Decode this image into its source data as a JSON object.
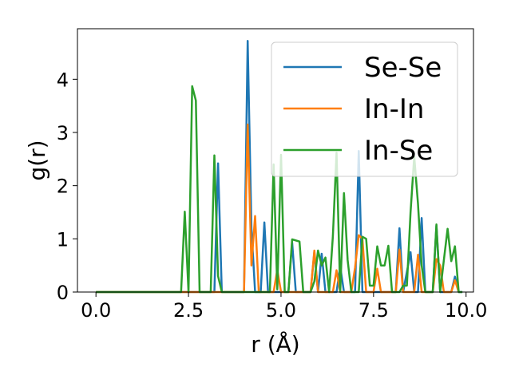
{
  "chart_data": {
    "type": "line",
    "xlabel": "r (Å)",
    "ylabel": "g(r)",
    "xlim": [
      -0.5,
      10.2
    ],
    "ylim": [
      0,
      4.95
    ],
    "xticks": [
      0.0,
      2.5,
      5.0,
      7.5,
      10.0
    ],
    "xtick_labels": [
      "0.0",
      "2.5",
      "5.0",
      "7.5",
      "10.0"
    ],
    "yticks": [
      0,
      1,
      2,
      3,
      4
    ],
    "ytick_labels": [
      "0",
      "1",
      "2",
      "3",
      "4"
    ],
    "grid": false,
    "legend_position": "top-right",
    "series": [
      {
        "name": "Se-Se",
        "color": "#1f77b4",
        "x": [
          0.0,
          3.2,
          3.3,
          3.4,
          3.5,
          4.0,
          4.1,
          4.2,
          4.3,
          4.35,
          4.45,
          4.55,
          4.65,
          4.8,
          5.0,
          5.2,
          5.3,
          5.4,
          5.6,
          5.8,
          5.9,
          6.0,
          6.1,
          6.2,
          6.4,
          6.5,
          6.6,
          6.7,
          6.9,
          7.0,
          7.1,
          7.2,
          7.4,
          7.5,
          7.6,
          7.8,
          8.0,
          8.1,
          8.2,
          8.3,
          8.5,
          8.6,
          8.7,
          8.8,
          8.9,
          9.0,
          9.1,
          9.2,
          9.3,
          9.5,
          9.6,
          9.7,
          9.8,
          9.9
        ],
        "y": [
          0,
          0,
          2.42,
          0,
          0,
          0,
          4.72,
          1.2,
          0,
          0,
          0,
          1.31,
          0,
          0,
          0,
          0,
          0.93,
          0,
          0,
          0,
          0.75,
          0,
          0.72,
          0,
          0,
          0,
          0.48,
          0,
          0,
          0,
          2.65,
          0,
          0,
          0,
          0,
          0,
          0,
          0,
          1.2,
          0,
          0.75,
          0,
          0,
          1.39,
          0,
          0,
          0,
          1.25,
          0,
          0,
          0,
          0.29,
          0,
          0
        ]
      },
      {
        "name": "In-In",
        "color": "#ff7f0e",
        "x": [
          0.0,
          3.9,
          4.0,
          4.1,
          4.2,
          4.3,
          4.4,
          4.5,
          4.7,
          4.8,
          4.9,
          5.0,
          5.8,
          5.9,
          6.0,
          6.1,
          6.3,
          6.4,
          6.5,
          6.6,
          6.8,
          6.9,
          7.0,
          7.1,
          7.2,
          7.3,
          7.5,
          7.6,
          7.7,
          7.8,
          8.1,
          8.2,
          8.3,
          8.6,
          8.7,
          8.8,
          9.0,
          9.1,
          9.2,
          9.3,
          9.4,
          9.6,
          9.7,
          9.8
        ],
        "y": [
          0,
          0,
          0,
          3.15,
          0.5,
          1.43,
          0,
          0,
          0,
          0,
          0.42,
          0,
          0,
          0.78,
          0,
          0,
          0,
          0,
          0.41,
          0,
          0,
          0,
          0.46,
          1.07,
          1.0,
          0,
          0,
          0.44,
          0,
          0,
          0,
          0.8,
          0,
          0,
          0.7,
          0,
          0,
          0,
          0.62,
          0.5,
          0,
          0,
          0.22,
          0
        ]
      },
      {
        "name": "In-Se",
        "color": "#2ca02c",
        "x": [
          0.0,
          2.3,
          2.4,
          2.5,
          2.6,
          2.7,
          2.8,
          3.1,
          3.2,
          3.3,
          3.4,
          3.8,
          3.9,
          4.4,
          4.5,
          4.7,
          4.8,
          4.9,
          5.0,
          5.1,
          5.2,
          5.3,
          5.5,
          5.6,
          5.7,
          5.8,
          5.9,
          6.0,
          6.1,
          6.2,
          6.3,
          6.4,
          6.5,
          6.6,
          6.7,
          6.8,
          6.9,
          7.0,
          7.1,
          7.2,
          7.3,
          7.4,
          7.5,
          7.6,
          7.7,
          7.8,
          7.9,
          8.0,
          8.1,
          8.2,
          8.3,
          8.4,
          8.5,
          8.6,
          8.7,
          8.8,
          8.9,
          9.0,
          9.1,
          9.2,
          9.3,
          9.4,
          9.5,
          9.6,
          9.7,
          9.8,
          9.9
        ],
        "y": [
          0,
          0,
          1.51,
          0,
          3.87,
          3.6,
          0,
          0,
          2.57,
          0.3,
          0,
          0,
          0,
          0,
          0,
          0,
          2.4,
          0.05,
          2.58,
          0,
          0,
          0.99,
          0.95,
          0,
          0,
          0,
          0.2,
          0.78,
          0.5,
          0.65,
          0,
          1.05,
          2.62,
          0,
          1.86,
          0.6,
          0,
          0,
          0,
          1.04,
          1.0,
          0.12,
          0.12,
          0.86,
          0.5,
          0.5,
          0.87,
          0,
          0,
          0,
          0.12,
          0.12,
          1.5,
          2.55,
          1.66,
          0.5,
          0,
          0,
          0,
          1.27,
          0,
          0.6,
          1.19,
          0.58,
          0.86,
          0,
          0
        ]
      }
    ]
  }
}
